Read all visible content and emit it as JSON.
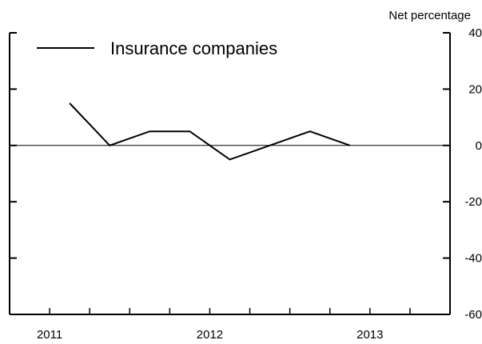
{
  "chart_data": {
    "type": "line",
    "y_unit_label": "Net percentage",
    "ylim": [
      -60,
      40
    ],
    "yticks": [
      -60,
      -40,
      -20,
      0,
      20,
      40
    ],
    "xlim": [
      2010.75,
      2013.5
    ],
    "xticks": [
      {
        "value": 2011,
        "label": "2011"
      },
      {
        "value": 2012,
        "label": "2012"
      },
      {
        "value": 2013,
        "label": "2013"
      }
    ],
    "x_minor_step": 0.25,
    "zero_line": true,
    "legend_position": "top-left",
    "series": [
      {
        "name": "Insurance companies",
        "color": "#000000",
        "points": [
          {
            "x": 2011.125,
            "y": 15
          },
          {
            "x": 2011.375,
            "y": 0
          },
          {
            "x": 2011.625,
            "y": 5
          },
          {
            "x": 2011.875,
            "y": 5
          },
          {
            "x": 2012.125,
            "y": -5
          },
          {
            "x": 2012.375,
            "y": 0
          },
          {
            "x": 2012.625,
            "y": 5
          },
          {
            "x": 2012.875,
            "y": 0
          }
        ]
      }
    ]
  }
}
